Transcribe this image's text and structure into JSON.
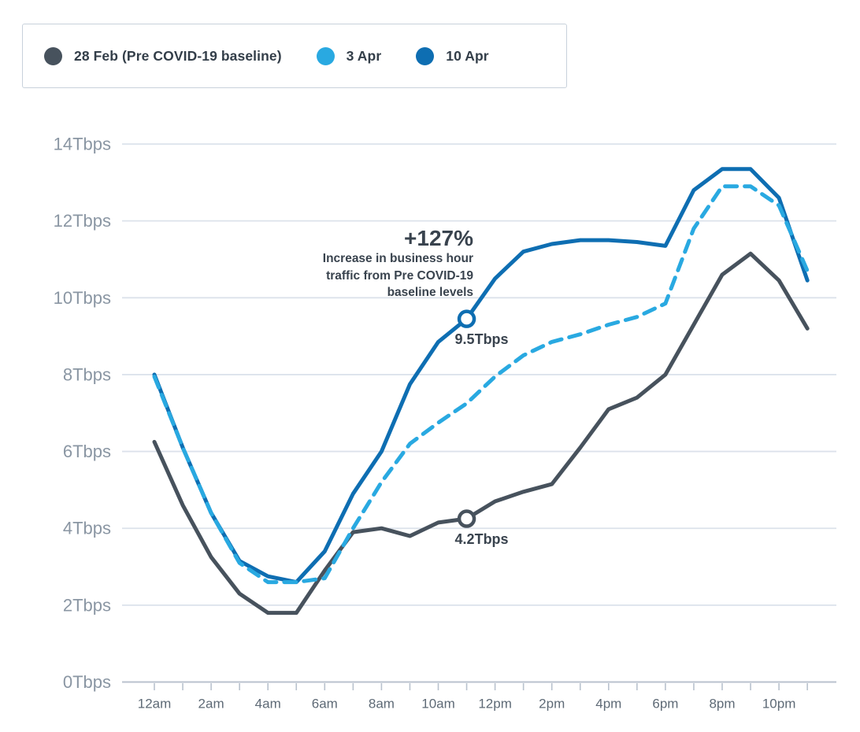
{
  "legend": {
    "items": [
      {
        "label": "28 Feb (Pre COVID-19 baseline)",
        "color": "#47525D",
        "line_style": "solid"
      },
      {
        "label": "3 Apr",
        "color": "#29A9E1",
        "line_style": "dashed"
      },
      {
        "label": "10 Apr",
        "color": "#0E6EB2",
        "line_style": "solid"
      }
    ]
  },
  "annotation": {
    "headline": "+127%",
    "lines": [
      "Increase in business hour",
      "traffic from Pre COVID-19",
      "baseline levels"
    ]
  },
  "callouts": [
    {
      "label": "9.5Tbps",
      "series": "10 Apr",
      "hour_index": 11,
      "value": 9.45
    },
    {
      "label": "4.2Tbps",
      "series": "28 Feb (Pre COVID-19 baseline)",
      "hour_index": 11,
      "value": 4.25
    }
  ],
  "chart_data": {
    "type": "line",
    "x_hours": [
      0,
      1,
      2,
      3,
      4,
      5,
      6,
      7,
      8,
      9,
      10,
      11,
      12,
      13,
      14,
      15,
      16,
      17,
      18,
      19,
      20,
      21,
      22,
      23
    ],
    "x_tick_labels": [
      "12am",
      "2am",
      "4am",
      "6am",
      "8am",
      "10am",
      "12pm",
      "2pm",
      "4pm",
      "6pm",
      "8pm",
      "10pm"
    ],
    "x_label_every": 2,
    "yticks": [
      0,
      2,
      4,
      6,
      8,
      10,
      12,
      14
    ],
    "ytick_labels": [
      "0Tbps",
      "2Tbps",
      "4Tbps",
      "6Tbps",
      "8Tbps",
      "10Tbps",
      "12Tbps",
      "14Tbps"
    ],
    "ylim": [
      0,
      14
    ],
    "grid": "horizontal",
    "legend_position": "top-left",
    "unit": "Tbps",
    "series": [
      {
        "name": "28 Feb (Pre COVID-19 baseline)",
        "color": "#47525D",
        "dash": false,
        "values": [
          6.25,
          4.6,
          3.25,
          2.3,
          1.8,
          1.8,
          2.9,
          3.9,
          4.0,
          3.8,
          4.15,
          4.25,
          4.7,
          4.95,
          5.15,
          6.1,
          7.1,
          7.4,
          8.0,
          9.3,
          10.6,
          11.15,
          10.45,
          9.2
        ]
      },
      {
        "name": "3 Apr",
        "color": "#29A9E1",
        "dash": true,
        "values": [
          7.95,
          6.1,
          4.4,
          3.1,
          2.6,
          2.6,
          2.7,
          4.0,
          5.2,
          6.2,
          6.75,
          7.25,
          7.95,
          8.5,
          8.85,
          9.05,
          9.3,
          9.5,
          9.85,
          11.8,
          12.9,
          12.9,
          12.4,
          10.7
        ]
      },
      {
        "name": "10 Apr",
        "color": "#0E6EB2",
        "dash": false,
        "values": [
          8.0,
          6.1,
          4.4,
          3.15,
          2.75,
          2.6,
          3.4,
          4.9,
          6.0,
          7.75,
          8.85,
          9.45,
          10.5,
          11.2,
          11.4,
          11.5,
          11.5,
          11.45,
          11.35,
          12.8,
          13.35,
          13.35,
          12.6,
          10.45
        ]
      }
    ]
  },
  "colors": {
    "accent_dark_blue": "#0E6EB2",
    "accent_light_blue": "#29A9E1",
    "baseline_gray": "#47525D",
    "grid_line": "#DCE2EB",
    "axis_line": "#B9C2CE",
    "y_tick_label": "#8A96A3",
    "x_tick_label": "#5E6A76",
    "text_dark": "#39434E",
    "legend_border": "#C8D1DB",
    "marker_fill": "#FFFFFF"
  }
}
